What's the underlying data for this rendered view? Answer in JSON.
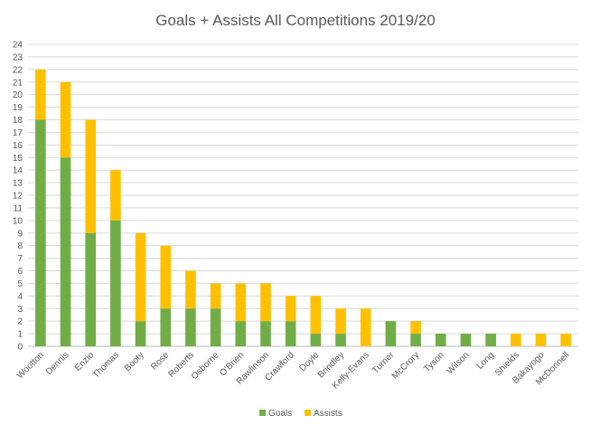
{
  "chart_data": {
    "type": "bar",
    "stacked": true,
    "title": "Goals + Assists All Competitions 2019/20",
    "xlabel": "",
    "ylabel": "",
    "ylim": [
      0,
      24
    ],
    "yticks": [
      0,
      1,
      2,
      3,
      4,
      5,
      6,
      7,
      8,
      9,
      10,
      11,
      12,
      13,
      14,
      15,
      16,
      17,
      18,
      19,
      20,
      21,
      22,
      23,
      24
    ],
    "grid": true,
    "legend_position": "bottom",
    "categories": [
      "Wootton",
      "Dennis",
      "Enzio",
      "Thomas",
      "Booty",
      "Rose",
      "Roberts",
      "Osborne",
      "O'Brien",
      "Rawlinson",
      "Crawford",
      "Doyle",
      "Brindley",
      "Kelly-Evans",
      "Turner",
      "McCrory",
      "Tyson",
      "Wilson",
      "Long",
      "Shields",
      "Bakayogo",
      "McDonnell"
    ],
    "series": [
      {
        "name": "Goals",
        "color": "#70ad47",
        "values": [
          18,
          15,
          9,
          10,
          2,
          3,
          3,
          3,
          2,
          2,
          2,
          1,
          1,
          0,
          2,
          1,
          1,
          1,
          1,
          0,
          0,
          0
        ]
      },
      {
        "name": "Assists",
        "color": "#ffc000",
        "values": [
          4,
          6,
          9,
          4,
          7,
          5,
          3,
          2,
          3,
          3,
          2,
          3,
          2,
          3,
          0,
          1,
          0,
          0,
          0,
          1,
          1,
          1
        ]
      }
    ]
  }
}
